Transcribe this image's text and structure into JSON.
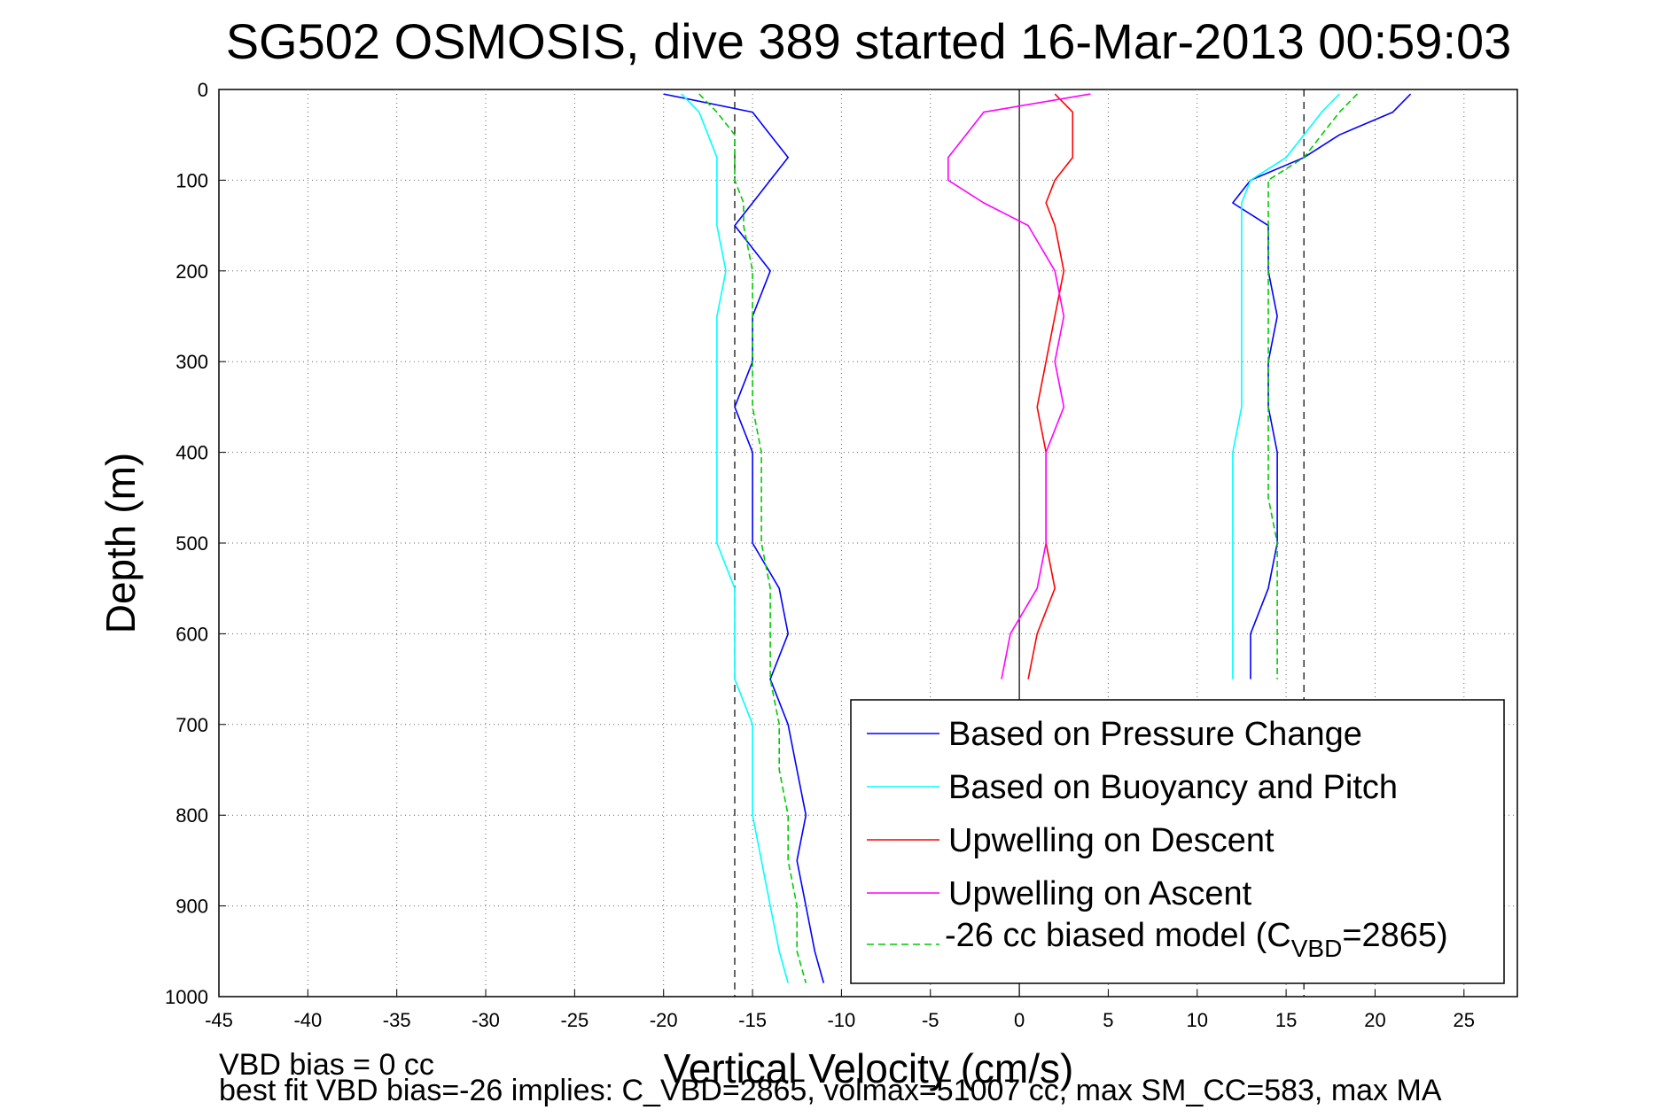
{
  "chart_data": {
    "type": "line",
    "title": "SG502 OSMOSIS, dive 389 started 16-Mar-2013 00:59:03",
    "xlabel": "Vertical Velocity (cm/s)",
    "ylabel": "Depth (m)",
    "xlim": [
      -45,
      28
    ],
    "ylim": [
      0,
      1000
    ],
    "y_reversed": true,
    "grid": true,
    "x_ticks": [
      "-45",
      "-40",
      "-35",
      "-30",
      "-25",
      "-20",
      "-15",
      "-10",
      "-5",
      "0",
      "5",
      "10",
      "15",
      "20",
      "25"
    ],
    "y_ticks": [
      "0",
      "100",
      "200",
      "300",
      "400",
      "500",
      "600",
      "700",
      "800",
      "900",
      "1000"
    ],
    "legend_position": "bottom-right",
    "legend": [
      {
        "label": "Based on Pressure Change",
        "color": "#0000ff"
      },
      {
        "label": "Based on Buoyancy and Pitch",
        "color": "#00ffff"
      },
      {
        "label": "Upwelling on Descent",
        "color": "#ff0000"
      },
      {
        "label": "Upwelling on Ascent",
        "color": "#ff00ff"
      },
      {
        "label_prefix": "-26 cc biased model (C",
        "label_sub": "VBD",
        "label_suffix": "=2865)",
        "color": "#00cc00",
        "dashed": true
      }
    ],
    "reference_lines": [
      {
        "x": -16,
        "style": "dashed"
      },
      {
        "x": 16,
        "style": "dashed"
      },
      {
        "x": 0,
        "style": "solid"
      }
    ],
    "depth": [
      5,
      25,
      50,
      75,
      100,
      125,
      150,
      200,
      250,
      300,
      350,
      400,
      450,
      500,
      550,
      600,
      650,
      700,
      750,
      800,
      850,
      900,
      950,
      985
    ],
    "series": [
      {
        "name": "Based on Pressure Change (descent)",
        "color": "#0000ff",
        "values": [
          -20,
          -15,
          -14,
          -13,
          -14,
          -15,
          -16,
          -14,
          -15,
          -15,
          -16,
          -15,
          -15,
          -15,
          -13.5,
          -13,
          -14,
          -13,
          -12.5,
          -12,
          -12.5,
          -12,
          -11.5,
          -11
        ]
      },
      {
        "name": "Based on Pressure Change (ascent)",
        "color": "#0000ff",
        "values": [
          22,
          21,
          18,
          16,
          13,
          12,
          14,
          14,
          14.5,
          14,
          14,
          14.5,
          14.5,
          14.5,
          14,
          13,
          13,
          null,
          null,
          null,
          null,
          null,
          null,
          null
        ]
      },
      {
        "name": "Based on Buoyancy and Pitch (descent)",
        "color": "#00ffff",
        "values": [
          -19,
          -18,
          -17.5,
          -17,
          -17,
          -17,
          -17,
          -16.5,
          -17,
          -17,
          -17,
          -17,
          -17,
          -17,
          -16,
          -16,
          -16,
          -15,
          -15,
          -15,
          -14.5,
          -14,
          -13.5,
          -13
        ]
      },
      {
        "name": "Based on Buoyancy and Pitch (ascent)",
        "color": "#00ffff",
        "values": [
          18,
          17,
          16,
          15,
          13,
          12.5,
          12.5,
          12.5,
          12.5,
          12.5,
          12.5,
          12,
          12,
          12,
          12,
          12,
          12,
          null,
          null,
          null,
          null,
          null,
          null,
          null
        ]
      },
      {
        "name": "Upwelling on Descent",
        "color": "#ff0000",
        "values": [
          2,
          3,
          3,
          3,
          2,
          1.5,
          2,
          2.5,
          2,
          1.5,
          1,
          1.5,
          1.5,
          1.5,
          2,
          1,
          0.5,
          null,
          null,
          null,
          null,
          null,
          null,
          null
        ]
      },
      {
        "name": "Upwelling on Ascent",
        "color": "#ff00ff",
        "values": [
          4,
          -2,
          -3,
          -4,
          -4,
          -2,
          0.5,
          2,
          2.5,
          2,
          2.5,
          1.5,
          1.5,
          1.5,
          1,
          -0.5,
          -1,
          null,
          null,
          null,
          null,
          null,
          null,
          null
        ]
      },
      {
        "name": "-26 cc biased model (descent)",
        "color": "#00cc00",
        "dashed": true,
        "values": [
          -18,
          -17,
          -16,
          -16,
          -16,
          -15.5,
          -15.5,
          -15,
          -15,
          -15,
          -15,
          -14.5,
          -14.5,
          -14.5,
          -14,
          -14,
          -14,
          -13.5,
          -13.5,
          -13,
          -13,
          -12.5,
          -12.5,
          -12
        ]
      },
      {
        "name": "-26 cc biased model (ascent)",
        "color": "#00cc00",
        "dashed": true,
        "values": [
          19,
          18,
          17,
          16,
          14,
          14,
          14,
          14,
          14,
          14,
          14,
          14,
          14,
          14.5,
          14.5,
          14.5,
          14.5,
          null,
          null,
          null,
          null,
          null,
          null,
          null
        ]
      }
    ],
    "annotations": [
      "VBD bias = 0 cc",
      "best fit VBD bias=-26 implies: C_VBD=2865, volmax=51007 cc, max SM_CC=583, max MA"
    ]
  }
}
